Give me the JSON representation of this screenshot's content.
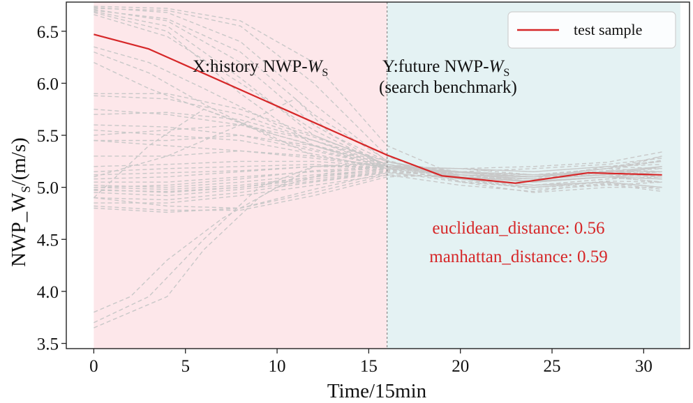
{
  "chart_data": {
    "type": "line",
    "xlabel": "Time/15min",
    "ylabel_main": "NWP_W",
    "ylabel_sub": "S",
    "ylabel_unit": "/(m/s)",
    "xlim": [
      -1.5,
      32.5
    ],
    "ylim": [
      3.45,
      6.78
    ],
    "xticks": [
      0,
      5,
      10,
      15,
      20,
      25,
      30
    ],
    "yticks": [
      3.5,
      4.0,
      4.5,
      5.0,
      5.5,
      6.0,
      6.5
    ],
    "split_x": 16,
    "history_region": {
      "x": [
        0,
        16
      ],
      "color": "#fde7ea"
    },
    "future_region": {
      "x": [
        16,
        32
      ],
      "color": "#e4f2f3"
    },
    "annotations": {
      "history": {
        "main": "X:history NWP-",
        "var": "W",
        "sub": "S"
      },
      "future": {
        "main": "Y:future NWP-",
        "var": "W",
        "sub": "S",
        "line2": "(search benchmark)"
      }
    },
    "metrics": [
      {
        "label": "euclidean_distance: 0.56"
      },
      {
        "label": "manhattan_distance: 0.59"
      }
    ],
    "metric_color": "#d62728",
    "legend": {
      "label": "test sample",
      "color": "#d62728",
      "position": "top-right"
    },
    "test_sample": {
      "name": "test sample",
      "color": "#d62728",
      "x": [
        0,
        3,
        16,
        19,
        23,
        27,
        31
      ],
      "y": [
        6.47,
        6.33,
        5.31,
        5.11,
        5.04,
        5.14,
        5.12
      ]
    },
    "candidate_color": "#c8c8c8",
    "candidates": [
      {
        "x": [
          0,
          4,
          8,
          12,
          16,
          20,
          24,
          28,
          31
        ],
        "y": [
          6.73,
          6.68,
          6.4,
          5.8,
          5.25,
          5.12,
          5.1,
          5.15,
          5.15
        ]
      },
      {
        "x": [
          0,
          4,
          8,
          12,
          16,
          20,
          24,
          28,
          31
        ],
        "y": [
          6.71,
          6.6,
          6.2,
          5.6,
          5.2,
          5.15,
          5.05,
          5.1,
          5.05
        ]
      },
      {
        "x": [
          0,
          4,
          8,
          12,
          16,
          20,
          24,
          28,
          31
        ],
        "y": [
          6.69,
          6.55,
          6.05,
          5.5,
          5.22,
          5.1,
          5.08,
          5.2,
          5.25
        ]
      },
      {
        "x": [
          0,
          4,
          8,
          12,
          16,
          20,
          24,
          28,
          31
        ],
        "y": [
          6.72,
          6.7,
          6.55,
          6.0,
          5.3,
          5.05,
          5.0,
          5.05,
          5.0
        ]
      },
      {
        "x": [
          0,
          4,
          8,
          12,
          16,
          20,
          24,
          28,
          31
        ],
        "y": [
          6.68,
          6.5,
          5.9,
          5.4,
          5.18,
          5.18,
          5.12,
          5.12,
          5.2
        ]
      },
      {
        "x": [
          0,
          4,
          8,
          12,
          16,
          20,
          24,
          28,
          31
        ],
        "y": [
          6.7,
          6.62,
          6.3,
          5.7,
          5.26,
          5.08,
          5.02,
          5.08,
          5.1
        ]
      },
      {
        "x": [
          0,
          4,
          8,
          12,
          16,
          20,
          24,
          28,
          31
        ],
        "y": [
          6.66,
          6.45,
          6.0,
          5.55,
          5.2,
          5.14,
          5.1,
          5.18,
          5.3
        ]
      },
      {
        "x": [
          0,
          4,
          8,
          12,
          16,
          20,
          24,
          28,
          31
        ],
        "y": [
          6.74,
          6.72,
          6.6,
          6.2,
          5.4,
          5.1,
          5.06,
          5.1,
          5.08
        ]
      },
      {
        "x": [
          0,
          3,
          6,
          10,
          16,
          20,
          24,
          28,
          31
        ],
        "y": [
          6.3,
          6.1,
          5.8,
          5.45,
          5.2,
          5.1,
          5.05,
          5.1,
          5.12
        ]
      },
      {
        "x": [
          0,
          3,
          6,
          10,
          16,
          20,
          24,
          28,
          31
        ],
        "y": [
          6.2,
          5.95,
          5.75,
          5.5,
          5.22,
          5.15,
          5.12,
          5.15,
          5.18
        ]
      },
      {
        "x": [
          0,
          3,
          6,
          10,
          16,
          20,
          24,
          28,
          31
        ],
        "y": [
          6.35,
          6.2,
          5.95,
          5.6,
          5.25,
          5.08,
          5.0,
          5.06,
          5.05
        ]
      },
      {
        "x": [
          0,
          4,
          8,
          12,
          16,
          20,
          24,
          28,
          31
        ],
        "y": [
          5.9,
          5.9,
          5.75,
          5.5,
          5.22,
          5.12,
          5.08,
          5.12,
          5.15
        ]
      },
      {
        "x": [
          0,
          4,
          8,
          12,
          16,
          20,
          24,
          28,
          31
        ],
        "y": [
          5.88,
          5.85,
          5.7,
          5.45,
          5.2,
          5.1,
          5.05,
          5.1,
          5.08
        ]
      },
      {
        "x": [
          0,
          4,
          8,
          12,
          16,
          20,
          24,
          28,
          31
        ],
        "y": [
          5.75,
          5.7,
          5.6,
          5.4,
          5.2,
          5.15,
          5.12,
          5.15,
          5.2
        ]
      },
      {
        "x": [
          0,
          4,
          8,
          12,
          16,
          20,
          24,
          28,
          31
        ],
        "y": [
          5.7,
          5.72,
          5.65,
          5.45,
          5.22,
          5.12,
          5.1,
          5.14,
          5.1
        ]
      },
      {
        "x": [
          0,
          4,
          8,
          12,
          16,
          20,
          24,
          28,
          31
        ],
        "y": [
          5.6,
          5.58,
          5.5,
          5.35,
          5.2,
          5.18,
          5.15,
          5.2,
          5.22
        ]
      },
      {
        "x": [
          0,
          4,
          8,
          12,
          16,
          20,
          24,
          28,
          31
        ],
        "y": [
          5.55,
          5.5,
          5.45,
          5.32,
          5.18,
          5.1,
          5.06,
          5.1,
          5.05
        ]
      },
      {
        "x": [
          0,
          4,
          8,
          12,
          16,
          20,
          24,
          28,
          31
        ],
        "y": [
          5.45,
          5.45,
          5.5,
          5.4,
          5.22,
          5.12,
          5.1,
          5.16,
          5.15
        ]
      },
      {
        "x": [
          0,
          4,
          8,
          12,
          16,
          20,
          24,
          28,
          31
        ],
        "y": [
          5.45,
          5.4,
          5.35,
          5.28,
          5.2,
          5.15,
          5.12,
          5.18,
          5.25
        ]
      },
      {
        "x": [
          0,
          4,
          8,
          12,
          16,
          20,
          24,
          28,
          31
        ],
        "y": [
          5.5,
          5.55,
          5.6,
          5.45,
          5.25,
          5.08,
          5.02,
          5.05,
          5.0
        ]
      },
      {
        "x": [
          0,
          4,
          8,
          12,
          16,
          20,
          24,
          28,
          31
        ],
        "y": [
          5.3,
          5.3,
          5.35,
          5.3,
          5.2,
          5.14,
          5.1,
          5.12,
          5.1
        ]
      },
      {
        "x": [
          0,
          4,
          8,
          12,
          16,
          20,
          24,
          28,
          31
        ],
        "y": [
          5.2,
          5.22,
          5.25,
          5.25,
          5.2,
          5.18,
          5.15,
          5.2,
          5.18
        ]
      },
      {
        "x": [
          0,
          4,
          8,
          12,
          16,
          20,
          24,
          28,
          31
        ],
        "y": [
          5.15,
          5.18,
          5.2,
          5.22,
          5.18,
          5.12,
          5.08,
          5.12,
          5.2
        ]
      },
      {
        "x": [
          0,
          4,
          8,
          12,
          16,
          20,
          24,
          28,
          31
        ],
        "y": [
          5.08,
          5.1,
          5.15,
          5.2,
          5.2,
          5.1,
          5.05,
          5.1,
          5.12
        ]
      },
      {
        "x": [
          0,
          4,
          8,
          12,
          16,
          20,
          24,
          28,
          31
        ],
        "y": [
          5.05,
          5.05,
          5.1,
          5.15,
          5.18,
          5.15,
          5.12,
          5.15,
          5.3
        ]
      },
      {
        "x": [
          0,
          4,
          8,
          12,
          16,
          20,
          24,
          28,
          31
        ],
        "y": [
          5.02,
          5.0,
          5.05,
          5.12,
          5.17,
          5.08,
          4.98,
          5.02,
          5.05
        ]
      },
      {
        "x": [
          0,
          4,
          8,
          12,
          16,
          20,
          24,
          28,
          31
        ],
        "y": [
          5.0,
          4.98,
          5.02,
          5.1,
          5.16,
          5.12,
          5.1,
          5.18,
          5.15
        ]
      },
      {
        "x": [
          0,
          4,
          8,
          12,
          16,
          20,
          24,
          28,
          31
        ],
        "y": [
          4.98,
          4.95,
          5.0,
          5.08,
          5.15,
          5.05,
          4.95,
          5.0,
          5.0
        ]
      },
      {
        "x": [
          0,
          4,
          8,
          12,
          16,
          20,
          24,
          28,
          31
        ],
        "y": [
          4.95,
          4.92,
          4.98,
          5.06,
          5.15,
          5.1,
          5.08,
          5.12,
          5.2
        ]
      },
      {
        "x": [
          0,
          4,
          8,
          12,
          16,
          20,
          24,
          28,
          31
        ],
        "y": [
          4.9,
          4.88,
          4.95,
          5.05,
          5.14,
          5.14,
          5.12,
          5.18,
          5.26
        ]
      },
      {
        "x": [
          0,
          4,
          8,
          12,
          16,
          20,
          24,
          28,
          31
        ],
        "y": [
          4.85,
          4.85,
          4.92,
          5.02,
          5.12,
          5.02,
          4.96,
          5.04,
          4.98
        ]
      },
      {
        "x": [
          0,
          4,
          8,
          12,
          16,
          20,
          24,
          28,
          31
        ],
        "y": [
          4.9,
          4.82,
          4.8,
          4.95,
          5.12,
          5.1,
          5.06,
          5.1,
          5.05
        ]
      },
      {
        "x": [
          0,
          4,
          8,
          12,
          16,
          20,
          24,
          28,
          31
        ],
        "y": [
          4.82,
          4.78,
          4.78,
          4.92,
          5.1,
          5.12,
          5.1,
          5.16,
          5.12
        ]
      },
      {
        "x": [
          0,
          4,
          8,
          12,
          16,
          20,
          24,
          28,
          31
        ],
        "y": [
          4.8,
          4.76,
          4.8,
          4.98,
          5.14,
          5.08,
          5.02,
          5.08,
          5.1
        ]
      },
      {
        "x": [
          0,
          2,
          4,
          7,
          10,
          13,
          16,
          20,
          24,
          28,
          31
        ],
        "y": [
          3.8,
          3.95,
          4.3,
          4.7,
          5.0,
          5.15,
          5.2,
          5.12,
          5.08,
          5.12,
          5.1
        ]
      },
      {
        "x": [
          0,
          3,
          6,
          9,
          12,
          16,
          20,
          24,
          28,
          31
        ],
        "y": [
          3.7,
          3.95,
          4.5,
          5.0,
          5.2,
          5.22,
          5.1,
          5.05,
          5.1,
          5.15
        ]
      },
      {
        "x": [
          0,
          4,
          6,
          9,
          12,
          16,
          20,
          24,
          28,
          31
        ],
        "y": [
          3.65,
          3.95,
          4.4,
          4.9,
          5.2,
          5.24,
          5.15,
          5.1,
          5.15,
          5.2
        ]
      },
      {
        "x": [
          0,
          3,
          6,
          9,
          12,
          16,
          20,
          24,
          28,
          31
        ],
        "y": [
          4.9,
          5.4,
          5.75,
          5.55,
          5.3,
          5.2,
          5.12,
          5.05,
          5.1,
          5.08
        ]
      },
      {
        "x": [
          0,
          4,
          8,
          11,
          13,
          16,
          20,
          24,
          28,
          31
        ],
        "y": [
          5.1,
          5.3,
          5.6,
          5.85,
          5.5,
          5.25,
          5.1,
          5.02,
          5.05,
          5.0
        ]
      },
      {
        "x": [
          0,
          4,
          8,
          12,
          16,
          20,
          24,
          28,
          31
        ],
        "y": [
          5.12,
          5.14,
          5.16,
          5.2,
          5.19,
          5.18,
          5.2,
          5.24,
          5.34
        ]
      },
      {
        "x": [
          0,
          4,
          8,
          12,
          16,
          20,
          24,
          28,
          31
        ],
        "y": [
          5.0,
          5.02,
          5.08,
          5.16,
          5.2,
          5.15,
          5.18,
          5.22,
          5.28
        ]
      },
      {
        "x": [
          0,
          4,
          8,
          12,
          16,
          20,
          24,
          28,
          31
        ],
        "y": [
          4.97,
          4.96,
          5.0,
          5.1,
          5.18,
          5.06,
          5.0,
          5.03,
          4.96
        ]
      }
    ]
  }
}
